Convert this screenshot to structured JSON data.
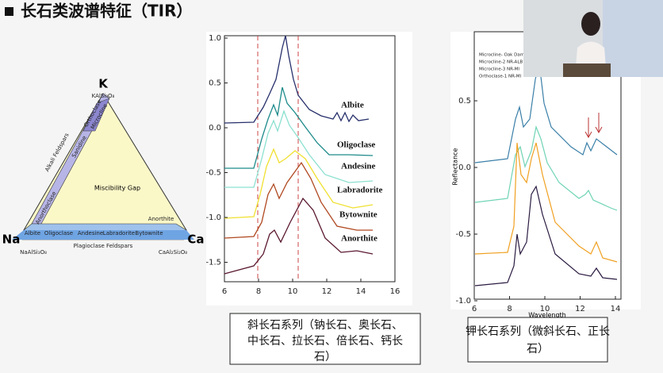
{
  "header": {
    "title": "长石类波谱特征（TIR）"
  },
  "ternary": {
    "k": "K",
    "na": "Na",
    "ca": "Ca",
    "k_formula": "KAlSi₃O₈",
    "na_formula": "NaAlSi₃O₈",
    "ca_formula": "CaAl₂Si₂O₈",
    "alkali": "Alkali Feldspars",
    "plagioclase": "Plagioclase Feldspars",
    "gap": "Miscibility Gap",
    "sanidine": "Sanidine",
    "orthoclase": "Orthoclase",
    "microcline": "Microcline",
    "anorthoclase": "Anorthoclase",
    "members": [
      "Albite",
      "Oligoclase",
      "Andesine",
      "Labradorite",
      "Bytownite",
      "Anorthite"
    ]
  },
  "plagioclase_chart": {
    "yticks": [
      "1.0",
      "0.5",
      "0.0",
      "-0.5",
      "-1.0",
      "-1.5"
    ],
    "xticks": [
      "6",
      "8",
      "10",
      "12",
      "14",
      "16"
    ],
    "labels": [
      "Albite",
      "Oligoclase",
      "Andesine",
      "Labradorite",
      "Bytownite",
      "Anorthite"
    ],
    "caption": [
      "斜长石系列（钠长石、奥长石、",
      "中长石、拉长石、倍长石、钙长",
      "石）"
    ]
  },
  "kfeldspar_chart": {
    "yticks": [
      "0.5",
      "0.0",
      "-0.5",
      "-1.0"
    ],
    "xticks": [
      "6",
      "8",
      "10",
      "12",
      "14"
    ],
    "ylabel": "Reflectance",
    "xlabel": "Wavelength",
    "legend": [
      "Microcline- Oak Dam",
      "Microcline-2 NR-ALB",
      "Microcline-3 NR-MI",
      "Orthoclase-1 NR-MI"
    ],
    "caption": [
      "钾长石系列（微斜长石、正长",
      "石）"
    ]
  }
}
